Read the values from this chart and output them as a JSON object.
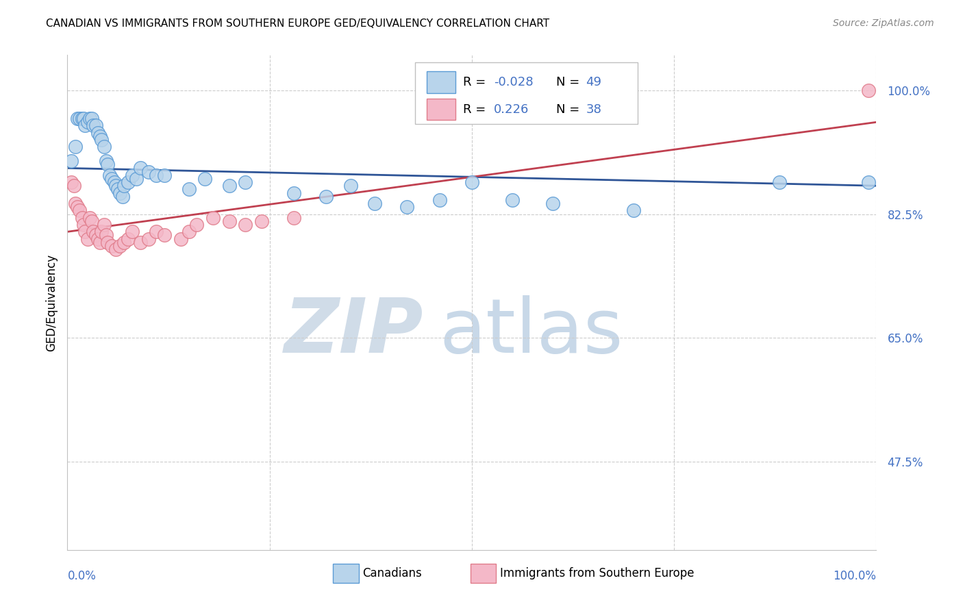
{
  "title": "CANADIAN VS IMMIGRANTS FROM SOUTHERN EUROPE GED/EQUIVALENCY CORRELATION CHART",
  "source": "Source: ZipAtlas.com",
  "ylabel": "GED/Equivalency",
  "ytick_labels": [
    "100.0%",
    "82.5%",
    "65.0%",
    "47.5%"
  ],
  "ytick_values": [
    1.0,
    0.825,
    0.65,
    0.475
  ],
  "xlim": [
    0.0,
    1.0
  ],
  "ylim": [
    0.35,
    1.05
  ],
  "canadian_R": -0.028,
  "canadian_N": 49,
  "immigrant_R": 0.226,
  "immigrant_N": 38,
  "canadian_color": "#b8d4eb",
  "canadian_edge_color": "#5b9bd5",
  "immigrant_color": "#f4b8c8",
  "immigrant_edge_color": "#e07b8a",
  "trend_canadian_color": "#2f5597",
  "trend_immigrant_color": "#c04050",
  "watermark_zip_color": "#d0dce8",
  "watermark_atlas_color": "#c8d8e8",
  "canadians_x": [
    0.005,
    0.01,
    0.012,
    0.015,
    0.018,
    0.02,
    0.022,
    0.025,
    0.028,
    0.03,
    0.032,
    0.035,
    0.038,
    0.04,
    0.042,
    0.045,
    0.048,
    0.05,
    0.052,
    0.055,
    0.058,
    0.06,
    0.062,
    0.065,
    0.068,
    0.07,
    0.075,
    0.08,
    0.085,
    0.09,
    0.1,
    0.11,
    0.12,
    0.15,
    0.17,
    0.2,
    0.22,
    0.28,
    0.32,
    0.35,
    0.38,
    0.42,
    0.46,
    0.5,
    0.55,
    0.6,
    0.7,
    0.88,
    0.99
  ],
  "canadians_y": [
    0.9,
    0.92,
    0.96,
    0.96,
    0.96,
    0.96,
    0.95,
    0.955,
    0.96,
    0.96,
    0.95,
    0.95,
    0.94,
    0.935,
    0.93,
    0.92,
    0.9,
    0.895,
    0.88,
    0.875,
    0.87,
    0.865,
    0.86,
    0.855,
    0.85,
    0.865,
    0.87,
    0.88,
    0.875,
    0.89,
    0.885,
    0.88,
    0.88,
    0.86,
    0.875,
    0.865,
    0.87,
    0.855,
    0.85,
    0.865,
    0.84,
    0.835,
    0.845,
    0.87,
    0.845,
    0.84,
    0.83,
    0.87,
    0.87
  ],
  "immigrants_x": [
    0.005,
    0.008,
    0.01,
    0.012,
    0.015,
    0.018,
    0.02,
    0.022,
    0.025,
    0.028,
    0.03,
    0.032,
    0.035,
    0.038,
    0.04,
    0.042,
    0.045,
    0.048,
    0.05,
    0.055,
    0.06,
    0.065,
    0.07,
    0.075,
    0.08,
    0.09,
    0.1,
    0.11,
    0.12,
    0.14,
    0.15,
    0.16,
    0.18,
    0.2,
    0.22,
    0.24,
    0.28,
    0.99
  ],
  "immigrants_y": [
    0.87,
    0.865,
    0.84,
    0.835,
    0.83,
    0.82,
    0.81,
    0.8,
    0.79,
    0.82,
    0.815,
    0.8,
    0.795,
    0.79,
    0.785,
    0.8,
    0.81,
    0.795,
    0.785,
    0.78,
    0.775,
    0.78,
    0.785,
    0.79,
    0.8,
    0.785,
    0.79,
    0.8,
    0.795,
    0.79,
    0.8,
    0.81,
    0.82,
    0.815,
    0.81,
    0.815,
    0.82,
    1.0
  ],
  "legend_box": {
    "R1_label": "R = ",
    "R1_value": "-0.028",
    "N1_label": "N = ",
    "N1_value": "49",
    "R2_label": "R = ",
    "R2_value": "0.226",
    "N2_label": "N = ",
    "N2_value": "38"
  }
}
